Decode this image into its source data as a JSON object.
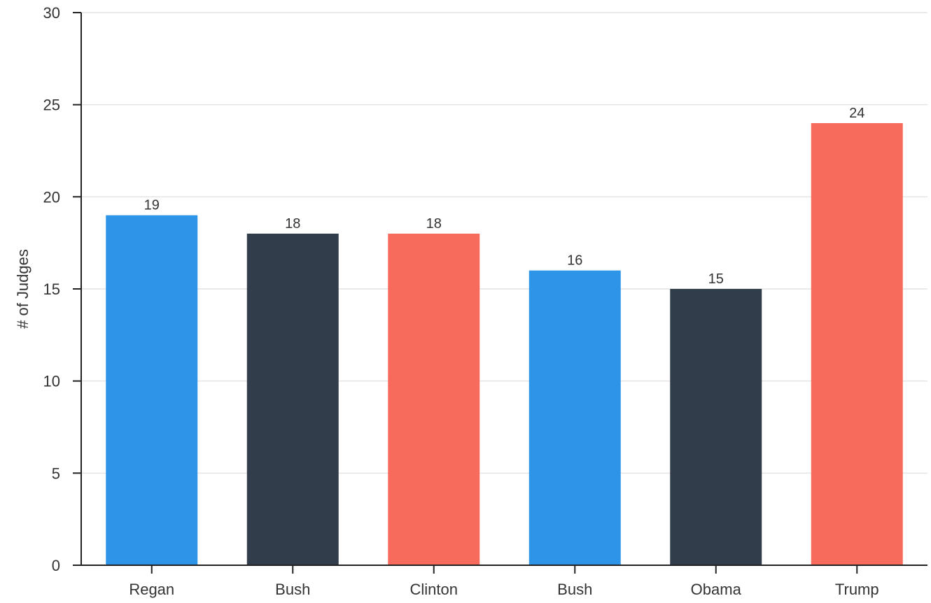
{
  "chart_data": {
    "type": "bar",
    "title": "",
    "xlabel": "",
    "ylabel": "# of Judges",
    "categories": [
      "Regan",
      "Bush",
      "Clinton",
      "Bush",
      "Obama",
      "Trump"
    ],
    "values": [
      19,
      18,
      18,
      16,
      15,
      24
    ],
    "bar_colors": [
      "#2e94e8",
      "#313d4a",
      "#f76b5c",
      "#2e94e8",
      "#313d4a",
      "#f76b5c"
    ],
    "ylim": [
      0,
      30
    ],
    "yticks": [
      0,
      5,
      10,
      15,
      20,
      25,
      30
    ],
    "data_labels": true,
    "grid": "horizontal",
    "legend": "none"
  }
}
